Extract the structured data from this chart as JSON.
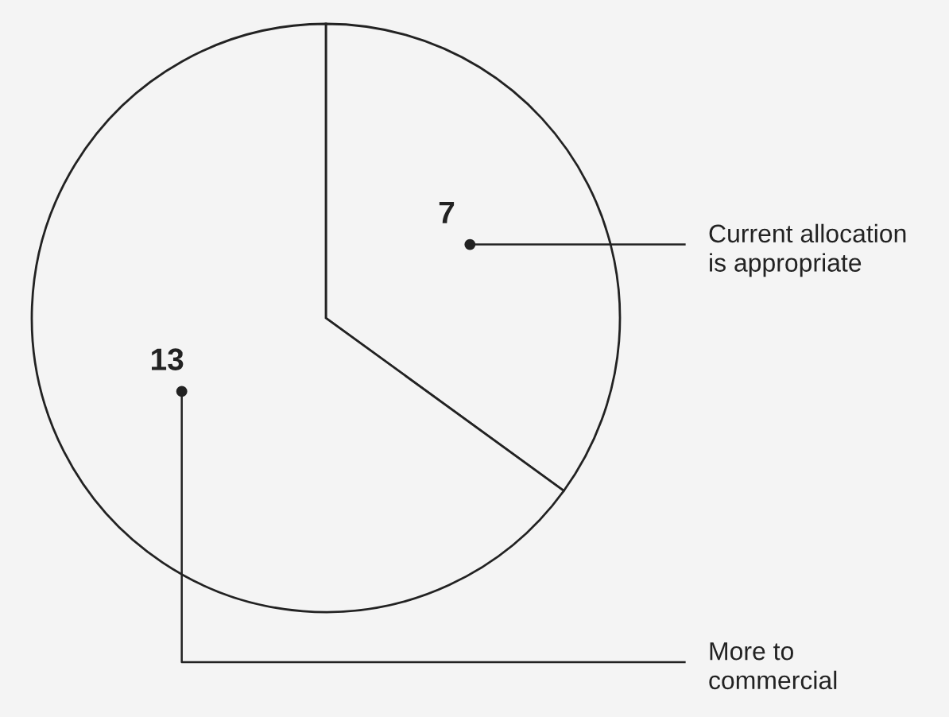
{
  "chart_data": {
    "type": "pie",
    "categories": [
      "Current allocation\nis appropriate",
      "More to\ncommercial"
    ],
    "values": [
      7,
      13
    ],
    "colors": [
      "#f4f4f4",
      "#f4f4f4"
    ],
    "data_labels": true
  }
}
